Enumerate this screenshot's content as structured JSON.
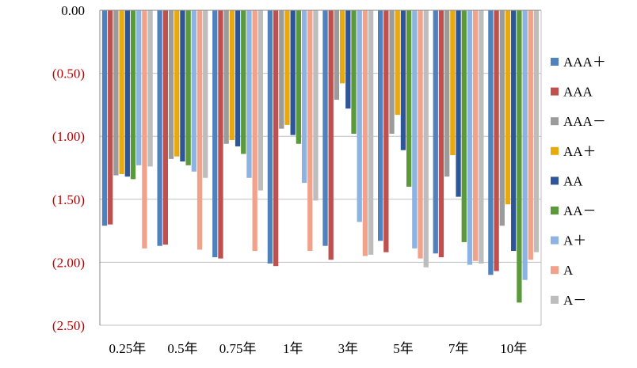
{
  "chart_data": {
    "type": "bar",
    "categories": [
      "0.25年",
      "0.5年",
      "0.75年",
      "1年",
      "3年",
      "5年",
      "7年",
      "10年"
    ],
    "ylim": [
      -2.5,
      0
    ],
    "yticks": [
      {
        "value": 0,
        "label": "0.00"
      },
      {
        "value": -0.5,
        "label": "(0.50)"
      },
      {
        "value": -1.0,
        "label": "(1.00)"
      },
      {
        "value": -1.5,
        "label": "(1.50)"
      },
      {
        "value": -2.0,
        "label": "(2.00)"
      },
      {
        "value": -2.5,
        "label": "(2.50)"
      }
    ],
    "grid": true,
    "legend_position": "right",
    "zero_label_color": "#000000",
    "negative_label_color": "#c00000",
    "series": [
      {
        "name": "AAA＋",
        "color": "#4f81bd",
        "values": [
          -1.71,
          -1.87,
          -1.96,
          -2.01,
          -1.87,
          -1.83,
          -1.93,
          -2.1
        ]
      },
      {
        "name": "AAA",
        "color": "#c0504d",
        "values": [
          -1.7,
          -1.86,
          -1.97,
          -2.03,
          -1.98,
          -1.92,
          -1.96,
          -2.07
        ]
      },
      {
        "name": "AAA－",
        "color": "#9b9b9b",
        "values": [
          -1.31,
          -1.18,
          -1.06,
          -0.94,
          -0.71,
          -0.98,
          -1.32,
          -1.71
        ]
      },
      {
        "name": "AA＋",
        "color": "#e8a90e",
        "values": [
          -1.3,
          -1.16,
          -1.03,
          -0.91,
          -0.58,
          -0.83,
          -1.15,
          -1.54
        ]
      },
      {
        "name": "AA",
        "color": "#2e5597",
        "values": [
          -1.32,
          -1.2,
          -1.08,
          -0.99,
          -0.78,
          -1.11,
          -1.48,
          -1.91
        ]
      },
      {
        "name": "AA－",
        "color": "#5a9a3b",
        "values": [
          -1.34,
          -1.23,
          -1.14,
          -1.06,
          -0.98,
          -1.4,
          -1.84,
          -2.32
        ]
      },
      {
        "name": "A＋",
        "color": "#8db3e2",
        "values": [
          -1.23,
          -1.28,
          -1.33,
          -1.37,
          -1.68,
          -1.89,
          -2.02,
          -2.14
        ]
      },
      {
        "name": "A",
        "color": "#f2a28a",
        "values": [
          -1.89,
          -1.9,
          -1.91,
          -1.91,
          -1.95,
          -1.97,
          -1.99,
          -1.98
        ]
      },
      {
        "name": "A－",
        "color": "#bdbdbd",
        "values": [
          -1.24,
          -1.33,
          -1.43,
          -1.51,
          -1.94,
          -2.04,
          -2.01,
          -1.92
        ]
      }
    ]
  }
}
